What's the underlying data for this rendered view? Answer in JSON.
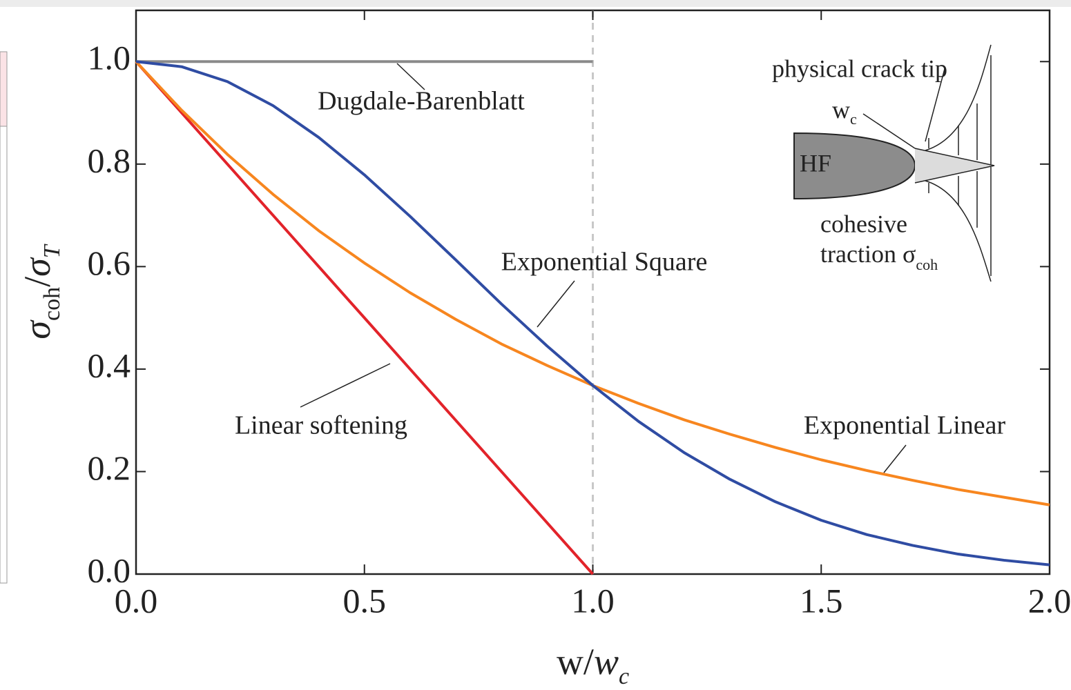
{
  "chart_data": {
    "type": "line",
    "x": [
      0,
      0.1,
      0.2,
      0.3,
      0.4,
      0.5,
      0.6,
      0.7,
      0.8,
      0.9,
      1.0,
      1.1,
      1.2,
      1.3,
      1.4,
      1.5,
      1.6,
      1.7,
      1.8,
      1.9,
      2.0
    ],
    "series": [
      {
        "name": "Dugdale-Barenblatt",
        "color": "#8a8a8a",
        "values": [
          1,
          1,
          1,
          1,
          1,
          1,
          1,
          1,
          1,
          1,
          1,
          null,
          null,
          null,
          null,
          null,
          null,
          null,
          null,
          null,
          null
        ]
      },
      {
        "name": "Linear softening",
        "color": "#e2232a",
        "values": [
          1,
          0.9,
          0.8,
          0.7,
          0.6,
          0.5,
          0.4,
          0.3,
          0.2,
          0.1,
          0,
          null,
          null,
          null,
          null,
          null,
          null,
          null,
          null,
          null,
          null
        ]
      },
      {
        "name": "Exponential Linear",
        "color": "#f7861f",
        "values": [
          1,
          0.905,
          0.819,
          0.741,
          0.67,
          0.607,
          0.549,
          0.497,
          0.449,
          0.407,
          0.368,
          0.333,
          0.301,
          0.273,
          0.247,
          0.223,
          0.202,
          0.183,
          0.165,
          0.15,
          0.135
        ]
      },
      {
        "name": "Exponential Square",
        "color": "#2f4ca3",
        "values": [
          1,
          0.99,
          0.961,
          0.914,
          0.852,
          0.779,
          0.698,
          0.613,
          0.527,
          0.445,
          0.368,
          0.298,
          0.237,
          0.185,
          0.141,
          0.105,
          0.077,
          0.056,
          0.039,
          0.027,
          0.018
        ]
      }
    ],
    "xlim": [
      0,
      2
    ],
    "ylim": [
      0,
      1.1
    ],
    "xticks": [
      {
        "value": 0,
        "label": "0.0"
      },
      {
        "value": 0.5,
        "label": "0.5"
      },
      {
        "value": 1,
        "label": "1.0"
      },
      {
        "value": 1.5,
        "label": "1.5"
      },
      {
        "value": 2,
        "label": "2.0"
      }
    ],
    "yticks": [
      {
        "value": 0,
        "label": "0.0"
      },
      {
        "value": 0.2,
        "label": "0.2"
      },
      {
        "value": 0.4,
        "label": "0.4"
      },
      {
        "value": 0.6,
        "label": "0.6"
      },
      {
        "value": 0.8,
        "label": "0.8"
      },
      {
        "value": 1,
        "label": "1.0"
      }
    ],
    "vline": 1,
    "xlabel": [
      {
        "text": "w/"
      },
      {
        "text": "w",
        "italic": true
      },
      {
        "text": "c",
        "italic": true,
        "sub": true
      }
    ],
    "ylabel": [
      {
        "text": "σ",
        "italic": true
      },
      {
        "text": "coh",
        "sub": true
      },
      {
        "text": "/"
      },
      {
        "text": "σ",
        "italic": true
      },
      {
        "text": "T",
        "italic": true,
        "sub": true
      }
    ],
    "inset": {
      "hf": "HF",
      "crack_tip": "physical crack tip",
      "wc": "w",
      "wc_sub": "c",
      "cohesive": "cohesive",
      "traction": "traction σ",
      "traction_sub": "coh"
    }
  }
}
